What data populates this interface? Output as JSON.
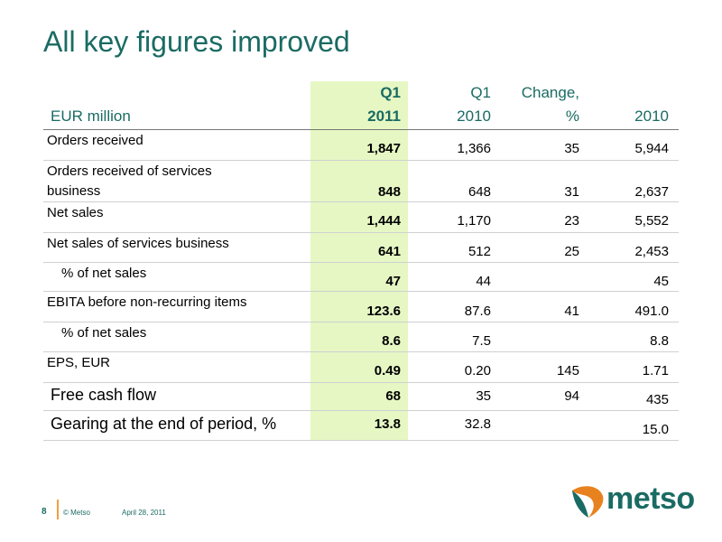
{
  "title": "All key figures improved",
  "header": {
    "unit_label": "EUR  million",
    "col1_line1": "Q1",
    "col1_line2": "2011",
    "col2_line1": "Q1",
    "col2_line2": "2010",
    "col3_line1": "Change,",
    "col3_line2": "%",
    "col4_line2": "2010"
  },
  "rows": [
    {
      "label": "Orders received",
      "q1_2011": "1,847",
      "q1_2010": "1,366",
      "change": "35",
      "y2010": "5,944"
    },
    {
      "label_line1": "Orders received of services",
      "label_line2": "business",
      "q1_2011": "848",
      "q1_2010": "648",
      "change": "31",
      "y2010": "2,637"
    },
    {
      "label": "Net sales",
      "q1_2011": "1,444",
      "q1_2010": "1,170",
      "change": "23",
      "y2010": "5,552"
    },
    {
      "label": "Net sales of services business",
      "q1_2011": "641",
      "q1_2010": "512",
      "change": "25",
      "y2010": "2,453"
    },
    {
      "label": "% of net sales",
      "q1_2011": "47",
      "q1_2010": "44",
      "change": "",
      "y2010": "45"
    },
    {
      "label": "EBITA before non-recurring items",
      "q1_2011": "123.6",
      "q1_2010": "87.6",
      "change": "41",
      "y2010": "491.0"
    },
    {
      "label": "% of net sales",
      "q1_2011": "8.6",
      "q1_2010": "7.5",
      "change": "",
      "y2010": "8.8"
    },
    {
      "label": "EPS, EUR",
      "q1_2011": "0.49",
      "q1_2010": "0.20",
      "change": "145",
      "y2010": "1.71"
    },
    {
      "label": "Free cash flow",
      "q1_2011": "68",
      "q1_2010": "35",
      "change": "94",
      "y2010": "435"
    },
    {
      "label": "Gearing at the end of period, %",
      "q1_2011": "13.8",
      "q1_2010": "32.8",
      "change": "",
      "y2010": "15.0"
    }
  ],
  "footer": {
    "page": "8",
    "copyright": "© Metso",
    "date": "April 28, 2011"
  },
  "logo": {
    "text": "metso",
    "colors": {
      "primary": "#1a6b63",
      "accent": "#e8821e"
    }
  },
  "colors": {
    "title": "#1a6b63",
    "highlight": "#e6f7c4"
  }
}
